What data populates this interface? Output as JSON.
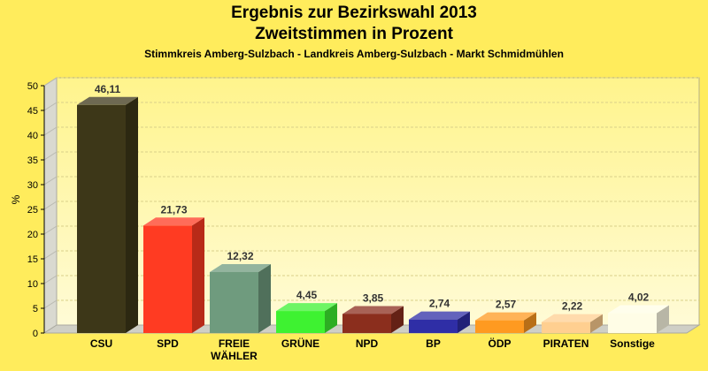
{
  "header": {
    "title": "Ergebnis zur Bezirkswahl 2013",
    "subtitle": "Zweitstimmen in Prozent",
    "region": "Stimmkreis Amberg-Sulzbach - Landkreis Amberg-Sulzbach - Markt Schmidmühlen"
  },
  "colors": {
    "background": "#ffec5c",
    "plot_back_top": "#fff48c",
    "plot_back_bottom": "#fffbd6"
  },
  "chart_data": {
    "type": "bar",
    "ylabel": "%",
    "xlabel": "",
    "ylim": [
      0,
      50
    ],
    "yticks": [
      0,
      5,
      10,
      15,
      20,
      25,
      30,
      35,
      40,
      45,
      50
    ],
    "grid": true,
    "categories": [
      "CSU",
      "SPD",
      "FREIE WÄHLER",
      "GRÜNE",
      "NPD",
      "BP",
      "ÖDP",
      "PIRATEN",
      "Sonstige"
    ],
    "labels": [
      "46,11",
      "21,73",
      "12,32",
      "4,45",
      "3,85",
      "2,74",
      "2,57",
      "2,22",
      "4,02"
    ],
    "values": [
      46.11,
      21.73,
      12.32,
      4.45,
      3.85,
      2.74,
      2.57,
      2.22,
      4.02
    ],
    "bar_colors": [
      "#3d3718",
      "#ff3b22",
      "#6f9b7e",
      "#3ef231",
      "#8b2e1d",
      "#2f2ea6",
      "#ff9a20",
      "#ffcf90",
      "#fffde6"
    ]
  }
}
